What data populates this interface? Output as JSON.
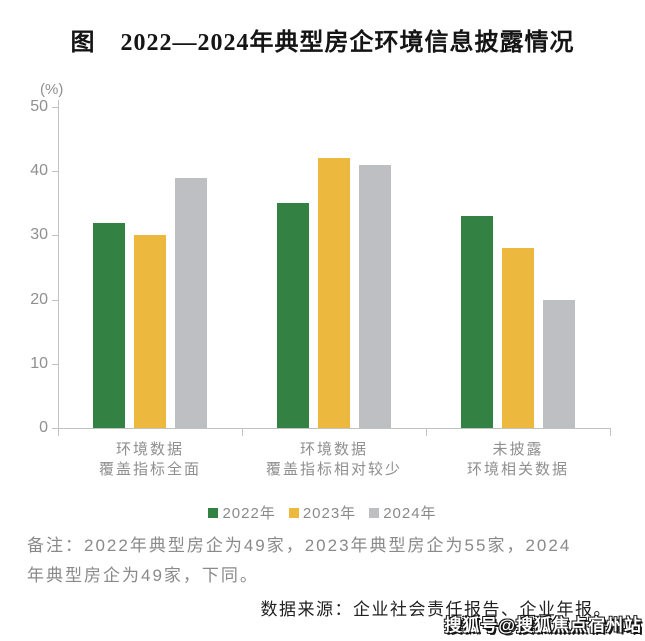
{
  "chart_data": {
    "type": "bar",
    "title": "图　2022—2024年典型房企环境信息披露情况",
    "unit_label": "(%)",
    "categories": [
      "环境数据\n覆盖指标全面",
      "环境数据\n覆盖指标相对较少",
      "未披露\n环境相关数据"
    ],
    "series": [
      {
        "name": "2022年",
        "color": "#348243",
        "values": [
          32,
          35,
          33
        ]
      },
      {
        "name": "2023年",
        "color": "#ECB83D",
        "values": [
          30,
          42,
          28
        ]
      },
      {
        "name": "2024年",
        "color": "#BDBFC3",
        "values": [
          39,
          41,
          20
        ]
      }
    ],
    "ylim": [
      0,
      50
    ],
    "yticks": [
      0,
      10,
      20,
      30,
      40,
      50
    ],
    "grid": false,
    "legend_position": "bottom"
  },
  "note": {
    "line1": "备注：2022年典型房企为49家，2023年典型房企为55家，2024",
    "line2": "年典型房企为49家，下同。"
  },
  "source": "数据来源：企业社会责任报告、企业年报。",
  "watermark": "搜狐号@搜狐焦点宿州站",
  "colors": {
    "axis": "#c2c2c2",
    "tick_label": "#8f8f8f",
    "note_text": "#8a8a8a",
    "source_text": "#222222",
    "title_text": "#151515"
  }
}
